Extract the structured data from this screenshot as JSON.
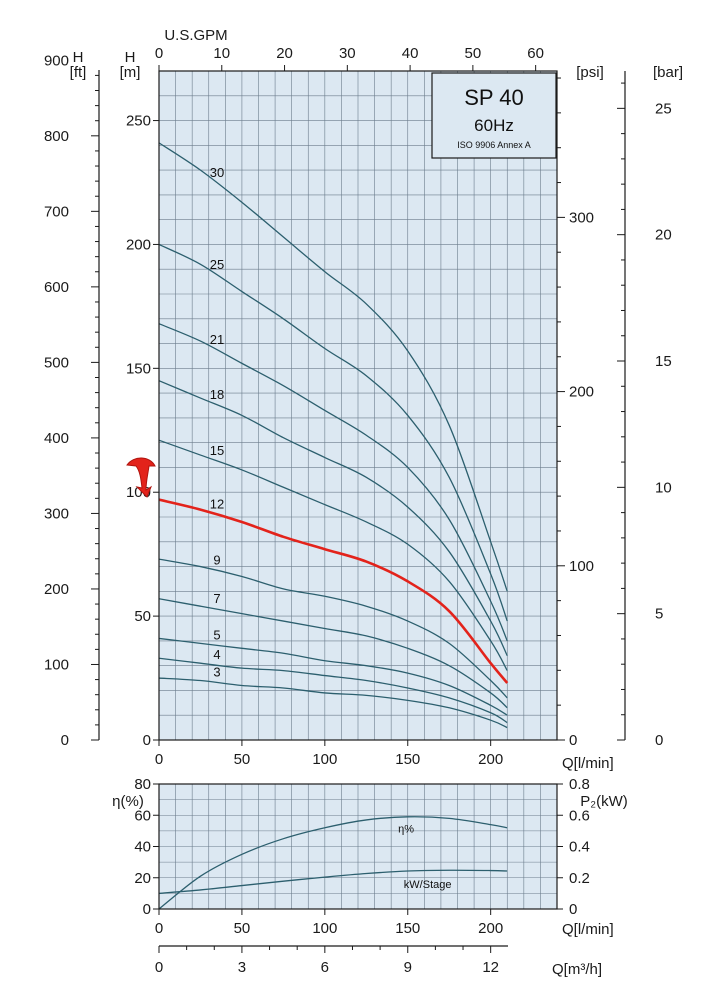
{
  "chart_data": [
    {
      "type": "line",
      "title": "SP 40",
      "subtitle": "60Hz",
      "standard": "ISO 9906 Annex A",
      "x_axis": {
        "label": "Q[l/min]",
        "range": [
          0,
          240
        ],
        "ticks": [
          0,
          50,
          100,
          150,
          200
        ]
      },
      "x_top_axis": {
        "label": "U.S.GPM",
        "range": [
          0,
          63.4
        ],
        "ticks": [
          0,
          10,
          20,
          30,
          40,
          50,
          60
        ]
      },
      "y_axis": {
        "label_top": "H",
        "label_unit": "[m]",
        "range": [
          0,
          270
        ],
        "ticks": [
          0,
          50,
          100,
          150,
          200,
          250
        ]
      },
      "y_ft_axis": {
        "label_top": "H",
        "label_unit": "[ft]",
        "range": [
          0,
          885.8
        ],
        "ticks": [
          0,
          100,
          200,
          300,
          400,
          500,
          600,
          700,
          800,
          900
        ]
      },
      "y_psi_axis": {
        "label": "[psi]",
        "range": [
          0,
          384
        ],
        "ticks": [
          0,
          100,
          200,
          300
        ]
      },
      "y_bar_axis": {
        "label": "[bar]",
        "range": [
          0,
          26.5
        ],
        "ticks": [
          0,
          5,
          10,
          15,
          20,
          25
        ]
      },
      "grid": true,
      "highlight_series": "12",
      "series": [
        {
          "name": "30",
          "x": [
            0,
            25,
            50,
            75,
            100,
            125,
            150,
            175,
            200,
            210
          ],
          "y": [
            241,
            230,
            217,
            203,
            189,
            176,
            157,
            127,
            80,
            60
          ]
        },
        {
          "name": "25",
          "x": [
            0,
            25,
            50,
            75,
            100,
            125,
            150,
            175,
            200,
            210
          ],
          "y": [
            200,
            192,
            181,
            170,
            158,
            147,
            131,
            106,
            67,
            48
          ]
        },
        {
          "name": "21",
          "x": [
            0,
            25,
            50,
            75,
            100,
            125,
            150,
            175,
            200,
            210
          ],
          "y": [
            168,
            161,
            152,
            143,
            133,
            123,
            110,
            89,
            56,
            40
          ]
        },
        {
          "name": "18",
          "x": [
            0,
            25,
            50,
            75,
            100,
            125,
            150,
            175,
            200,
            210
          ],
          "y": [
            145,
            138,
            131,
            122,
            114,
            106,
            94,
            76,
            48,
            34
          ]
        },
        {
          "name": "15",
          "x": [
            0,
            25,
            50,
            75,
            100,
            125,
            150,
            175,
            200,
            210
          ],
          "y": [
            121,
            115,
            109,
            102,
            95,
            88,
            79,
            64,
            40,
            28
          ]
        },
        {
          "name": "12",
          "x": [
            0,
            25,
            50,
            75,
            100,
            125,
            150,
            175,
            200,
            210
          ],
          "y": [
            97,
            93,
            88,
            82,
            77,
            72,
            64,
            52,
            31,
            23
          ]
        },
        {
          "name": "9",
          "x": [
            0,
            25,
            50,
            75,
            100,
            125,
            150,
            175,
            200,
            210
          ],
          "y": [
            73,
            70,
            66,
            61,
            58,
            54,
            48,
            39,
            24,
            17
          ]
        },
        {
          "name": "7",
          "x": [
            0,
            25,
            50,
            75,
            100,
            125,
            150,
            175,
            200,
            210
          ],
          "y": [
            57,
            54,
            51,
            48,
            45,
            42,
            37,
            30,
            19,
            13
          ]
        },
        {
          "name": "5",
          "x": [
            0,
            25,
            50,
            75,
            100,
            125,
            150,
            175,
            200,
            210
          ],
          "y": [
            41,
            39,
            37,
            35,
            32,
            30,
            27,
            22,
            14,
            10
          ]
        },
        {
          "name": "4",
          "x": [
            0,
            25,
            50,
            75,
            100,
            125,
            150,
            175,
            200,
            210
          ],
          "y": [
            33,
            31,
            29,
            28,
            26,
            24,
            21,
            17,
            11,
            7
          ]
        },
        {
          "name": "3",
          "x": [
            0,
            25,
            50,
            75,
            100,
            125,
            150,
            175,
            200,
            210
          ],
          "y": [
            25,
            24,
            22,
            21,
            19,
            18,
            16,
            13,
            8,
            5
          ]
        }
      ]
    },
    {
      "type": "line",
      "x_axis": {
        "label": "Q[l/min]",
        "range": [
          0,
          240
        ],
        "ticks": [
          0,
          50,
          100,
          150,
          200
        ]
      },
      "x_m3h_axis": {
        "label": "Q[m³/h]",
        "range": [
          0,
          14.4
        ],
        "ticks": [
          0,
          3,
          6,
          9,
          12
        ]
      },
      "y_left": {
        "label": "η(%)",
        "range": [
          0,
          80
        ],
        "ticks": [
          0,
          20,
          40,
          60,
          80
        ]
      },
      "y_right": {
        "label": "P₂(kW)",
        "range": [
          0,
          0.8
        ],
        "ticks": [
          "0",
          "0.2",
          "0.4",
          "0.6",
          "0.8"
        ]
      },
      "grid": true,
      "series": [
        {
          "name": "η%",
          "axis": "left",
          "x": [
            0,
            25,
            50,
            75,
            100,
            125,
            150,
            175,
            200,
            210
          ],
          "y": [
            0,
            21,
            35,
            45,
            52,
            57,
            59,
            58,
            54,
            52
          ]
        },
        {
          "name": "kW/Stage",
          "axis": "right",
          "x": [
            0,
            25,
            50,
            75,
            100,
            125,
            150,
            175,
            200,
            210
          ],
          "y": [
            0.1,
            0.122,
            0.15,
            0.178,
            0.204,
            0.227,
            0.243,
            0.248,
            0.246,
            0.243
          ]
        }
      ]
    }
  ],
  "colors": {
    "curve": "#2c5f6e",
    "highlight": "#e3231b",
    "plot_bg": "#dce8f2",
    "grid": "#6b7c8c",
    "frame": "#1a1a1a"
  }
}
